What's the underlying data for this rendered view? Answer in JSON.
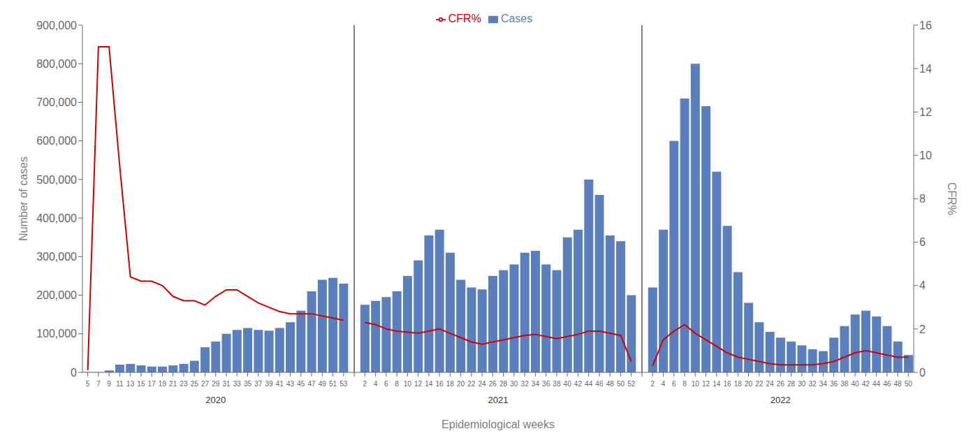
{
  "chart_data": {
    "type": "bar",
    "xlabel": "Epidemiological weeks",
    "ylabel": "Number of cases",
    "y2label": "CFR%",
    "categories": [
      "5",
      "7",
      "9",
      "11",
      "13",
      "15",
      "17",
      "19",
      "21",
      "23",
      "25",
      "27",
      "29",
      "31",
      "33",
      "35",
      "37",
      "39",
      "41",
      "43",
      "45",
      "47",
      "49",
      "51",
      "53",
      null,
      "2",
      "4",
      "6",
      "8",
      "10",
      "12",
      "14",
      "16",
      "18",
      "20",
      "22",
      "24",
      "26",
      "28",
      "30",
      "32",
      "34",
      "36",
      "38",
      "40",
      "42",
      "44",
      "46",
      "48",
      "50",
      "52",
      null,
      "2",
      "4",
      "6",
      "8",
      "10",
      "12",
      "14",
      "16",
      "18",
      "20",
      "22",
      "24",
      "26",
      "28",
      "30",
      "32",
      "34",
      "36",
      "38",
      "40",
      "42",
      "44",
      "46",
      "48",
      "50"
    ],
    "annotations": [
      "2020",
      "2021",
      "2022"
    ],
    "series": [
      {
        "name": "Cases",
        "type": "bar",
        "color": "#5b7fbc",
        "values": [
          500,
          500,
          5000,
          20000,
          22000,
          18000,
          15000,
          15000,
          18000,
          22000,
          30000,
          65000,
          80000,
          100000,
          110000,
          115000,
          110000,
          108000,
          115000,
          130000,
          160000,
          210000,
          240000,
          245000,
          230000,
          null,
          175000,
          185000,
          195000,
          210000,
          250000,
          290000,
          355000,
          370000,
          310000,
          240000,
          220000,
          215000,
          250000,
          265000,
          280000,
          310000,
          315000,
          280000,
          265000,
          350000,
          370000,
          500000,
          460000,
          355000,
          340000,
          200000,
          null,
          220000,
          370000,
          600000,
          710000,
          800000,
          690000,
          520000,
          380000,
          260000,
          180000,
          130000,
          105000,
          90000,
          80000,
          70000,
          60000,
          55000,
          90000,
          120000,
          150000,
          160000,
          145000,
          120000,
          80000,
          45000
        ]
      },
      {
        "name": "CFR%",
        "type": "line",
        "color": "#cc0000",
        "axis": "y2",
        "values": [
          0.1,
          15.0,
          15.0,
          9.5,
          4.4,
          4.2,
          4.2,
          4.0,
          3.5,
          3.3,
          3.3,
          3.1,
          3.5,
          3.8,
          3.8,
          3.5,
          3.2,
          3.0,
          2.8,
          2.7,
          2.7,
          2.7,
          2.6,
          2.5,
          2.4,
          null,
          2.3,
          2.2,
          2.0,
          1.9,
          1.85,
          1.8,
          1.9,
          2.0,
          1.8,
          1.6,
          1.4,
          1.3,
          1.4,
          1.5,
          1.6,
          1.7,
          1.75,
          1.65,
          1.55,
          1.65,
          1.75,
          1.9,
          1.9,
          1.8,
          1.7,
          0.5,
          null,
          0.3,
          1.5,
          1.9,
          2.2,
          1.8,
          1.5,
          1.2,
          0.9,
          0.7,
          0.6,
          0.5,
          0.4,
          0.35,
          0.35,
          0.35,
          0.35,
          0.4,
          0.5,
          0.7,
          0.9,
          1.0,
          0.9,
          0.8,
          0.7,
          0.7
        ]
      }
    ],
    "ylim": [
      0,
      900000
    ],
    "yticks": [
      0,
      {
        "value": 100000,
        "label": "100,000"
      },
      {
        "value": 200000,
        "label": "200,000"
      },
      {
        "value": 300000,
        "label": "300,000"
      },
      {
        "value": 400000,
        "label": "400,000"
      },
      {
        "value": 500000,
        "label": "500,000"
      },
      {
        "value": 600000,
        "label": "600,000"
      },
      {
        "value": 700000,
        "label": "700,000"
      },
      {
        "value": 800000,
        "label": "800,000"
      },
      {
        "value": 900000,
        "label": "900,000"
      }
    ],
    "y2lim": [
      0,
      16
    ],
    "y2ticks": [
      0,
      2,
      4,
      6,
      8,
      10,
      12,
      14,
      16
    ],
    "legend": "top",
    "grid": false
  }
}
